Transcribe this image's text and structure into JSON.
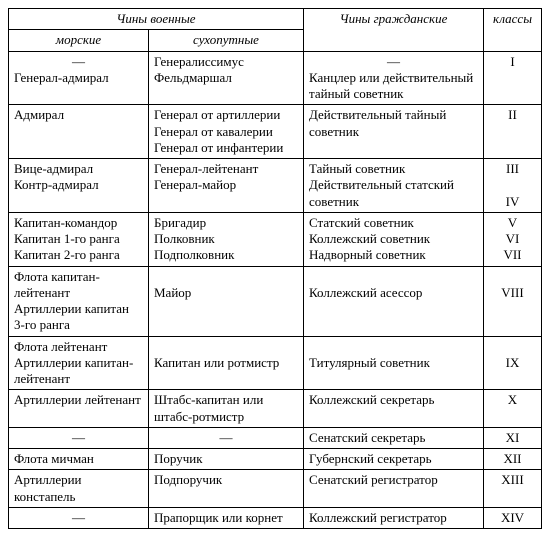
{
  "headers": {
    "military": "Чины военные",
    "naval": "морские",
    "land": "сухопутные",
    "civil": "Чины гражданские",
    "classes": "классы"
  },
  "dash": "—",
  "rows": [
    {
      "naval": [
        "—",
        "Генерал-адмирал"
      ],
      "land": [
        "Генералиссимус",
        "Фельдмаршал"
      ],
      "civil": [
        "—",
        "Канцлер или действительный тайный советник"
      ],
      "class": [
        "I"
      ]
    },
    {
      "naval": [
        "Адмирал"
      ],
      "land": [
        "Генерал от артиллерии",
        "Генерал от кавалерии",
        "Генерал от инфантерии"
      ],
      "civil": [
        "Действительный тайный советник"
      ],
      "class": [
        "II"
      ]
    },
    {
      "naval": [
        "Вице-адмирал",
        "Контр-адмирал"
      ],
      "land": [
        "Генерал-лейтенант",
        "Генерал-майор"
      ],
      "civil": [
        "Тайный советник",
        "Действительный статский советник"
      ],
      "class": [
        "III",
        "",
        "IV"
      ]
    },
    {
      "naval": [
        "Капитан-командор",
        "Капитан 1-го ранга",
        "Капитан 2-го ранга"
      ],
      "land": [
        "Бригадир",
        "Полковник",
        "Подполковник"
      ],
      "civil": [
        "Статский советник",
        "Коллежский советник",
        "Надворный советник"
      ],
      "class": [
        "V",
        "VI",
        "VII"
      ]
    },
    {
      "naval": [
        "Флота капитан-лейтенант",
        "Артиллерии капитан 3-го ранга"
      ],
      "land": [
        "",
        "Майор"
      ],
      "civil": [
        "",
        "Коллежский асессор"
      ],
      "class": [
        "",
        "VIII"
      ]
    },
    {
      "naval": [
        "Флота лейтенант",
        "Артиллерии капитан-лейтенант"
      ],
      "land": [
        "",
        "Капитан или ротмистр"
      ],
      "civil": [
        "",
        "Титулярный советник"
      ],
      "class": [
        "",
        "IX"
      ]
    },
    {
      "naval": [
        "Артиллерии лейтенант"
      ],
      "land": [
        "Штабс-капитан или штабс-ротмистр"
      ],
      "civil": [
        "Коллежский секретарь"
      ],
      "class": [
        "X"
      ]
    },
    {
      "naval": [
        "—"
      ],
      "naval_center": true,
      "land": [
        "—"
      ],
      "land_center": true,
      "civil": [
        "Сенатский секретарь"
      ],
      "class": [
        "XI"
      ]
    },
    {
      "naval": [
        "Флота мичман"
      ],
      "land": [
        "Поручик"
      ],
      "civil": [
        "Губернский секретарь"
      ],
      "class": [
        "XII"
      ]
    },
    {
      "naval": [
        "Артиллерии констапель"
      ],
      "land": [
        "Подпоручик"
      ],
      "civil": [
        "Сенатский регистратор"
      ],
      "class": [
        "XIII"
      ]
    },
    {
      "naval": [
        "—"
      ],
      "naval_center": true,
      "land": [
        "Прапорщик или корнет"
      ],
      "civil": [
        "Коллежский регистратор"
      ],
      "class": [
        "XIV"
      ]
    }
  ]
}
